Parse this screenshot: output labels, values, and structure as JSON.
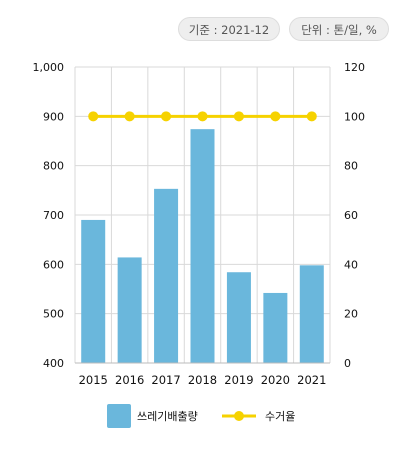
{
  "header": {
    "basis_label": "기준 : 2021-12",
    "unit_label": "단위 : 톤/일, %"
  },
  "colors": {
    "bar": "#6ab7dc",
    "line": "#f6d200",
    "grid": "#d9d9d9",
    "axis_text": "#111111"
  },
  "chart_data": {
    "type": "bar",
    "categories": [
      "2015",
      "2016",
      "2017",
      "2018",
      "2019",
      "2020",
      "2021"
    ],
    "series": [
      {
        "name": "쓰레기배출량",
        "type": "bar",
        "axis": "left",
        "values": [
          690,
          614,
          753,
          874,
          584,
          542,
          598
        ]
      },
      {
        "name": "수거율",
        "type": "line",
        "axis": "right",
        "values": [
          100,
          100,
          100,
          100,
          100,
          100,
          100
        ]
      }
    ],
    "y_left": {
      "min": 400,
      "max": 1000,
      "ticks": [
        "400",
        "500",
        "600",
        "700",
        "800",
        "900",
        "1,000"
      ]
    },
    "y_right": {
      "min": 0,
      "max": 120,
      "ticks": [
        "0",
        "20",
        "40",
        "60",
        "80",
        "100",
        "120"
      ]
    },
    "grid": true,
    "legend": {
      "position": "bottom",
      "items": [
        "쓰레기배출량",
        "수거율"
      ]
    }
  }
}
